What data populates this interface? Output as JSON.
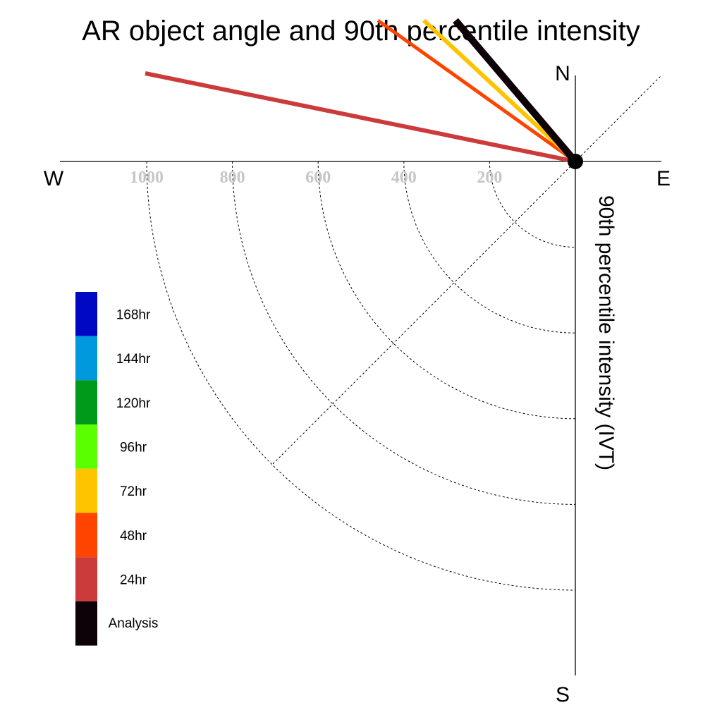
{
  "chart_data": {
    "type": "polar-vector",
    "title": "AR object angle and 90th percentile intensity",
    "ylabel": "90th percentile intensity (IVT)",
    "compass": {
      "north": "N",
      "south": "S",
      "east": "E",
      "west": "W"
    },
    "radial_ticks": [
      {
        "value": 200,
        "label": "200"
      },
      {
        "value": 400,
        "label": "400"
      },
      {
        "value": 600,
        "label": "600"
      },
      {
        "value": 800,
        "label": "800"
      },
      {
        "value": 1000,
        "label": "1000"
      }
    ],
    "rmax": 1200,
    "series": [
      {
        "name": "Analysis",
        "color": "#0c0208",
        "dx": -170,
        "dy": 200,
        "width": 10
      },
      {
        "name": "72hr",
        "color": "#ffc400",
        "dx": -215,
        "dy": 200,
        "width": 6
      },
      {
        "name": "48hr",
        "color": "#ff4400",
        "dx": -280,
        "dy": 200,
        "width": 5
      },
      {
        "name": "24hr",
        "color": "#cc3b3b",
        "dx": -610,
        "dy": 125,
        "width": 6
      }
    ],
    "legend": [
      {
        "label": "168hr",
        "color": "#0008c4"
      },
      {
        "label": "144hr",
        "color": "#0099de"
      },
      {
        "label": "120hr",
        "color": "#009a1a"
      },
      {
        "label": "96hr",
        "color": "#5aff00"
      },
      {
        "label": "72hr",
        "color": "#ffc400"
      },
      {
        "label": "48hr",
        "color": "#ff4400"
      },
      {
        "label": "24hr",
        "color": "#cc3b3b"
      },
      {
        "label": "Analysis",
        "color": "#0c0208"
      }
    ],
    "legend_placement": "left"
  }
}
